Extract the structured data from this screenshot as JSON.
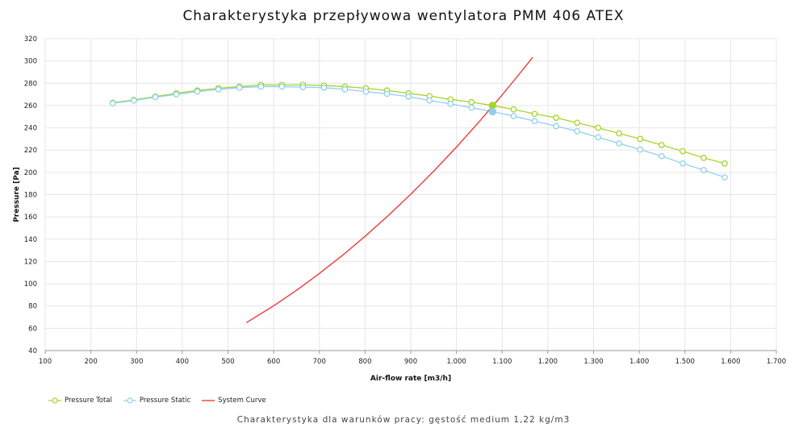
{
  "title": "Charakterystyka przepływowa wentylatora PMM 406 ATEX",
  "subtitle": "Charakterystyka dla warunków pracy: gęstość medium 1,22 kg/m3",
  "colors": {
    "total": "#a6d42a",
    "static": "#8fd0f0",
    "system": "#f03a3a",
    "grid": "#e6e6e6",
    "axis": "#9a9a9a"
  },
  "chart_data": {
    "type": "line",
    "title": "Charakterystyka przepływowa wentylatora PMM 406 ATEX",
    "xlabel": "Air-flow rate [m3/h]",
    "ylabel": "Pressure [Pa]",
    "xlim": [
      100,
      1700
    ],
    "ylim": [
      40,
      320
    ],
    "x_ticks": [
      "100",
      "200",
      "300",
      "400",
      "500",
      "600",
      "700",
      "800",
      "900",
      "1.000",
      "1.100",
      "1.200",
      "1.300",
      "1.400",
      "1.500",
      "1.600",
      "1.700"
    ],
    "y_ticks": [
      "40",
      "60",
      "80",
      "100",
      "120",
      "140",
      "160",
      "180",
      "200",
      "220",
      "240",
      "260",
      "280",
      "300",
      "320"
    ],
    "grid": true,
    "legend_position": "bottom-left",
    "series": [
      {
        "name": "Pressure Total",
        "color_key": "total",
        "marker": "circle",
        "x": [
          248,
          294,
          341,
          387,
          433,
          479,
          525,
          572,
          618,
          664,
          710,
          756,
          802,
          848,
          895,
          941,
          987,
          1033,
          1079,
          1125,
          1171,
          1218,
          1264,
          1310,
          1356,
          1402,
          1449,
          1495,
          1541,
          1587
        ],
        "y": [
          262.5,
          265,
          268,
          271,
          273.5,
          275.5,
          277,
          278.5,
          278.5,
          278.5,
          278,
          277,
          275.5,
          273.5,
          271,
          268.5,
          265.5,
          263,
          260,
          256.5,
          252.5,
          249,
          244.5,
          240,
          235,
          230,
          224.5,
          219,
          213,
          208
        ]
      },
      {
        "name": "Pressure Static",
        "color_key": "static",
        "marker": "circle",
        "x": [
          248,
          294,
          341,
          387,
          433,
          479,
          525,
          572,
          618,
          664,
          710,
          756,
          802,
          848,
          895,
          941,
          987,
          1033,
          1079,
          1125,
          1171,
          1218,
          1264,
          1310,
          1356,
          1402,
          1449,
          1495,
          1541,
          1587
        ],
        "y": [
          262,
          264.5,
          267.5,
          270,
          272.5,
          274.5,
          276,
          277,
          277,
          276.5,
          276,
          274.5,
          272.5,
          270.5,
          268,
          264.5,
          261.5,
          258,
          254.5,
          250.5,
          246,
          241.5,
          237,
          231.5,
          226,
          220.5,
          214.5,
          208,
          202,
          195.5
        ]
      },
      {
        "name": "System Curve",
        "color_key": "system",
        "marker": "none",
        "x": [
          540,
          600,
          650,
          700,
          750,
          800,
          850,
          900,
          950,
          1000,
          1050,
          1100,
          1150,
          1167
        ],
        "y": [
          65,
          80.2,
          94.1,
          109.2,
          125.3,
          142.6,
          160.9,
          180.4,
          201,
          222.7,
          245.6,
          269.5,
          294.6,
          303.3
        ]
      }
    ],
    "operating_point": {
      "x": 1079,
      "total": 260,
      "static": 254.5
    }
  }
}
